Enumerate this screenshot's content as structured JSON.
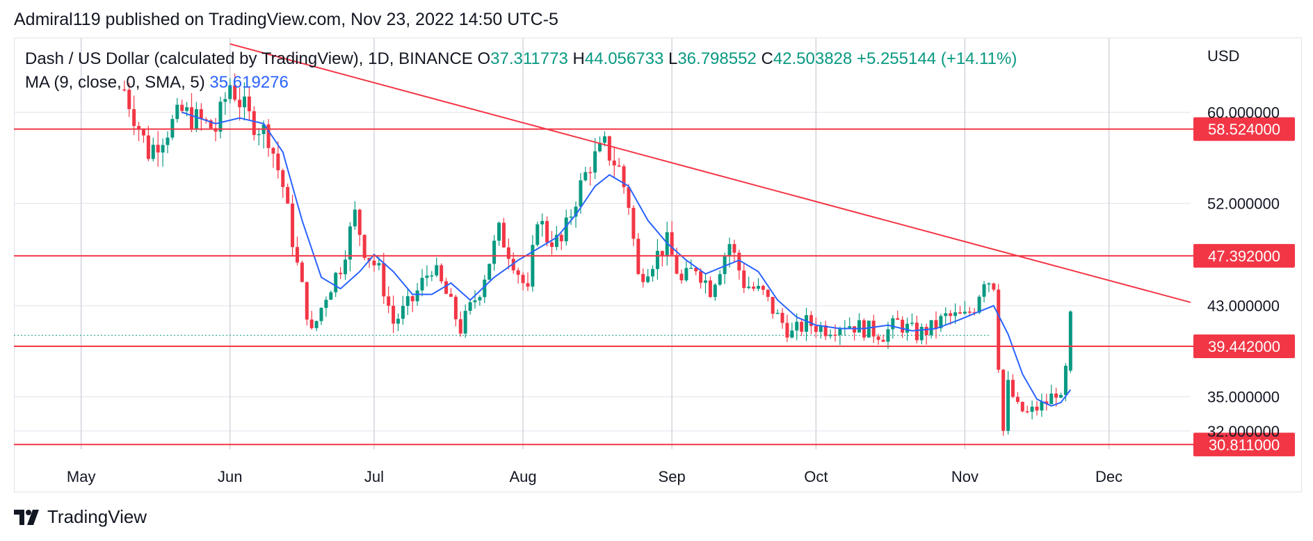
{
  "header": {
    "published_text": "Admiral119 published on TradingView.com, Nov 23, 2022 14:50 UTC-5"
  },
  "legend": {
    "symbol": "Dash / US Dollar (calculated by TradingView), 1D, BINANCE",
    "o_label": "O",
    "o_value": "37.311773",
    "h_label": "H",
    "h_value": "44.056733",
    "l_label": "L",
    "l_value": "36.798552",
    "c_label": "C",
    "c_value": "42.503828",
    "change": "+5.255144 (+14.11%)",
    "ma_label": "MA (9, close, 0, SMA, 5)",
    "ma_value": "35.619276"
  },
  "footer": {
    "brand": "TradingView"
  },
  "colors": {
    "up": "#089981",
    "down": "#f23645",
    "ma": "#2962ff",
    "level": "#f23645",
    "grid": "#e0e3eb"
  },
  "chart_data": {
    "type": "candlestick",
    "currency": "USD",
    "y_axis_ticks": [
      "60.000000",
      "52.000000",
      "43.000000",
      "35.000000",
      "32.000000"
    ],
    "y_tick_values": [
      60,
      52,
      43,
      35,
      32
    ],
    "x_axis_ticks": [
      "May",
      "Jun",
      "Jul",
      "Aug",
      "Sep",
      "Oct",
      "Nov",
      "Dec"
    ],
    "price_levels": [
      {
        "value": 58.524,
        "label": "58.524000"
      },
      {
        "value": 47.392,
        "label": "47.392000"
      },
      {
        "value": 39.442,
        "label": "39.442000"
      },
      {
        "value": 30.811,
        "label": "30.811000"
      }
    ],
    "trendline": {
      "from": {
        "date": "2022-06-01",
        "price": 66.0
      },
      "to": {
        "date": "2022-12-18",
        "price": 43.3
      }
    },
    "x_start": "2022-04-17",
    "x_end": "2022-12-18",
    "y_range": [
      30.4,
      66.5
    ],
    "last_price_dotted": 40.4,
    "closes": [
      {
        "date": "2022-05-10",
        "close": 62.0
      },
      {
        "date": "2022-05-15",
        "close": 56.5
      },
      {
        "date": "2022-05-22",
        "close": 60.0
      },
      {
        "date": "2022-05-29",
        "close": 58.5
      },
      {
        "date": "2022-06-01",
        "close": 62.5
      },
      {
        "date": "2022-06-05",
        "close": 59.5
      },
      {
        "date": "2022-06-09",
        "close": 58.0
      },
      {
        "date": "2022-06-12",
        "close": 53.5
      },
      {
        "date": "2022-06-15",
        "close": 46.5
      },
      {
        "date": "2022-06-18",
        "close": 40.5
      },
      {
        "date": "2022-06-21",
        "close": 44.0
      },
      {
        "date": "2022-06-24",
        "close": 46.5
      },
      {
        "date": "2022-06-27",
        "close": 51.0
      },
      {
        "date": "2022-06-29",
        "close": 48.0
      },
      {
        "date": "2022-07-02",
        "close": 46.0
      },
      {
        "date": "2022-07-05",
        "close": 41.5
      },
      {
        "date": "2022-07-09",
        "close": 43.5
      },
      {
        "date": "2022-07-13",
        "close": 46.5
      },
      {
        "date": "2022-07-16",
        "close": 44.0
      },
      {
        "date": "2022-07-19",
        "close": 41.0
      },
      {
        "date": "2022-07-23",
        "close": 44.5
      },
      {
        "date": "2022-07-27",
        "close": 49.5
      },
      {
        "date": "2022-07-30",
        "close": 47.0
      },
      {
        "date": "2022-08-02",
        "close": 44.0
      },
      {
        "date": "2022-08-04",
        "close": 51.0
      },
      {
        "date": "2022-08-06",
        "close": 49.0
      },
      {
        "date": "2022-08-09",
        "close": 48.5
      },
      {
        "date": "2022-08-12",
        "close": 52.5
      },
      {
        "date": "2022-08-15",
        "close": 55.5
      },
      {
        "date": "2022-08-18",
        "close": 57.0
      },
      {
        "date": "2022-08-21",
        "close": 55.0
      },
      {
        "date": "2022-08-23",
        "close": 52.0
      },
      {
        "date": "2022-08-25",
        "close": 45.5
      },
      {
        "date": "2022-08-28",
        "close": 47.0
      },
      {
        "date": "2022-08-31",
        "close": 48.5
      },
      {
        "date": "2022-09-03",
        "close": 45.0
      },
      {
        "date": "2022-09-06",
        "close": 46.5
      },
      {
        "date": "2022-09-09",
        "close": 44.5
      },
      {
        "date": "2022-09-11",
        "close": 46.5
      },
      {
        "date": "2022-09-13",
        "close": 48.5
      },
      {
        "date": "2022-09-16",
        "close": 45.0
      },
      {
        "date": "2022-09-20",
        "close": 44.0
      },
      {
        "date": "2022-09-23",
        "close": 42.0
      },
      {
        "date": "2022-09-26",
        "close": 40.5
      },
      {
        "date": "2022-09-29",
        "close": 41.5
      },
      {
        "date": "2022-10-03",
        "close": 41.0
      },
      {
        "date": "2022-10-07",
        "close": 41.5
      },
      {
        "date": "2022-10-11",
        "close": 41.0
      },
      {
        "date": "2022-10-15",
        "close": 40.5
      },
      {
        "date": "2022-10-18",
        "close": 41.5
      },
      {
        "date": "2022-10-22",
        "close": 40.5
      },
      {
        "date": "2022-10-25",
        "close": 41.0
      },
      {
        "date": "2022-10-28",
        "close": 42.0
      },
      {
        "date": "2022-11-01",
        "close": 42.0
      },
      {
        "date": "2022-11-03",
        "close": 43.0
      },
      {
        "date": "2022-11-05",
        "close": 45.5
      },
      {
        "date": "2022-11-07",
        "close": 45.0
      },
      {
        "date": "2022-11-08",
        "close": 38.0
      },
      {
        "date": "2022-11-09",
        "close": 32.0
      },
      {
        "date": "2022-11-10",
        "close": 36.0
      },
      {
        "date": "2022-11-12",
        "close": 34.0
      },
      {
        "date": "2022-11-14",
        "close": 33.5
      },
      {
        "date": "2022-11-16",
        "close": 34.0
      },
      {
        "date": "2022-11-18",
        "close": 34.5
      },
      {
        "date": "2022-11-20",
        "close": 35.5
      },
      {
        "date": "2022-11-21",
        "close": 34.5
      },
      {
        "date": "2022-11-22",
        "close": 37.3
      },
      {
        "date": "2022-11-23",
        "close": 42.5
      }
    ],
    "ma_points": [
      {
        "date": "2022-05-22",
        "value": 60.0
      },
      {
        "date": "2022-05-29",
        "value": 59.0
      },
      {
        "date": "2022-06-03",
        "value": 59.5
      },
      {
        "date": "2022-06-08",
        "value": 59.0
      },
      {
        "date": "2022-06-12",
        "value": 56.5
      },
      {
        "date": "2022-06-16",
        "value": 50.5
      },
      {
        "date": "2022-06-20",
        "value": 45.5
      },
      {
        "date": "2022-06-24",
        "value": 44.5
      },
      {
        "date": "2022-06-28",
        "value": 46.0
      },
      {
        "date": "2022-07-01",
        "value": 47.5
      },
      {
        "date": "2022-07-05",
        "value": 46.0
      },
      {
        "date": "2022-07-09",
        "value": 44.0
      },
      {
        "date": "2022-07-13",
        "value": 44.0
      },
      {
        "date": "2022-07-17",
        "value": 45.0
      },
      {
        "date": "2022-07-21",
        "value": 43.5
      },
      {
        "date": "2022-07-26",
        "value": 45.5
      },
      {
        "date": "2022-07-31",
        "value": 47.0
      },
      {
        "date": "2022-08-04",
        "value": 48.0
      },
      {
        "date": "2022-08-08",
        "value": 49.0
      },
      {
        "date": "2022-08-12",
        "value": 51.0
      },
      {
        "date": "2022-08-16",
        "value": 53.5
      },
      {
        "date": "2022-08-19",
        "value": 54.5
      },
      {
        "date": "2022-08-23",
        "value": 53.5
      },
      {
        "date": "2022-08-27",
        "value": 50.5
      },
      {
        "date": "2022-08-31",
        "value": 48.5
      },
      {
        "date": "2022-09-04",
        "value": 47.0
      },
      {
        "date": "2022-09-08",
        "value": 45.8
      },
      {
        "date": "2022-09-12",
        "value": 46.5
      },
      {
        "date": "2022-09-15",
        "value": 47.0
      },
      {
        "date": "2022-09-19",
        "value": 46.0
      },
      {
        "date": "2022-09-23",
        "value": 43.5
      },
      {
        "date": "2022-09-27",
        "value": 42.0
      },
      {
        "date": "2022-10-01",
        "value": 41.3
      },
      {
        "date": "2022-10-06",
        "value": 41.0
      },
      {
        "date": "2022-10-11",
        "value": 41.0
      },
      {
        "date": "2022-10-16",
        "value": 41.3
      },
      {
        "date": "2022-10-21",
        "value": 40.8
      },
      {
        "date": "2022-10-26",
        "value": 41.0
      },
      {
        "date": "2022-10-31",
        "value": 41.8
      },
      {
        "date": "2022-11-04",
        "value": 42.5
      },
      {
        "date": "2022-11-07",
        "value": 43.0
      },
      {
        "date": "2022-11-10",
        "value": 40.5
      },
      {
        "date": "2022-11-13",
        "value": 37.0
      },
      {
        "date": "2022-11-16",
        "value": 34.8
      },
      {
        "date": "2022-11-19",
        "value": 34.2
      },
      {
        "date": "2022-11-21",
        "value": 34.5
      },
      {
        "date": "2022-11-23",
        "value": 35.62
      }
    ]
  }
}
